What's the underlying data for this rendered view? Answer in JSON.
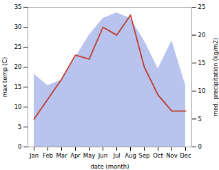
{
  "chart_data": {
    "type": "line",
    "xlabel": "date (month)",
    "ylabel": "max temp (C)",
    "y2label": "med. precipitation (kg/m2)",
    "categories": [
      "Jan",
      "Feb",
      "Mar",
      "Apr",
      "May",
      "Jun",
      "Jul",
      "Aug",
      "Sep",
      "Oct",
      "Nov",
      "Dec"
    ],
    "series": [
      {
        "type": "area",
        "axis": "y2",
        "color": "#b8c4ee",
        "values": [
          13,
          11,
          12,
          16,
          20,
          23,
          24,
          23,
          19,
          14,
          19,
          11
        ]
      },
      {
        "type": "line",
        "color": "#c0392b",
        "values": [
          7,
          12,
          17,
          23,
          22,
          30,
          28,
          33,
          20,
          13,
          9,
          9
        ]
      }
    ],
    "ylim": [
      0,
      35
    ],
    "yticks": [
      0,
      5,
      10,
      15,
      20,
      25,
      30,
      35
    ],
    "y2lim": [
      0,
      25
    ],
    "y2ticks": [
      0,
      5,
      10,
      15,
      20,
      25
    ],
    "grid": false
  }
}
